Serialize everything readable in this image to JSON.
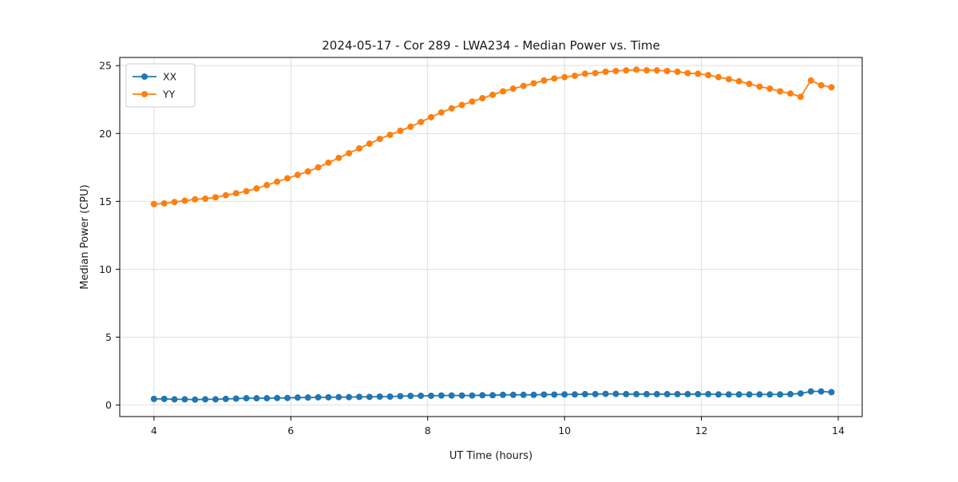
{
  "chart_data": {
    "type": "line",
    "title": "2024-05-17 - Cor 289 - LWA234 - Median Power vs. Time",
    "xlabel": "UT Time (hours)",
    "ylabel": "Median Power (CPU)",
    "xlim": [
      3.5,
      14.35
    ],
    "ylim": [
      -0.85,
      25.6
    ],
    "xticks": [
      4,
      6,
      8,
      10,
      12,
      14
    ],
    "yticks": [
      0,
      5,
      10,
      15,
      20,
      25
    ],
    "grid": true,
    "legend_position": "upper left",
    "x": [
      4.0,
      4.15,
      4.3,
      4.45,
      4.6,
      4.75,
      4.9,
      5.05,
      5.2,
      5.35,
      5.5,
      5.65,
      5.8,
      5.95,
      6.1,
      6.25,
      6.4,
      6.55,
      6.7,
      6.85,
      7.0,
      7.15,
      7.3,
      7.45,
      7.6,
      7.75,
      7.9,
      8.05,
      8.2,
      8.35,
      8.5,
      8.65,
      8.8,
      8.95,
      9.1,
      9.25,
      9.4,
      9.55,
      9.7,
      9.85,
      10.0,
      10.15,
      10.3,
      10.45,
      10.6,
      10.75,
      10.9,
      11.05,
      11.2,
      11.35,
      11.5,
      11.65,
      11.8,
      11.95,
      12.1,
      12.25,
      12.4,
      12.55,
      12.7,
      12.85,
      13.0,
      13.15,
      13.3,
      13.45,
      13.6,
      13.75,
      13.9
    ],
    "series": [
      {
        "name": "XX",
        "color": "#1f77b4",
        "values": [
          0.45,
          0.45,
          0.42,
          0.42,
          0.4,
          0.42,
          0.42,
          0.45,
          0.47,
          0.5,
          0.5,
          0.5,
          0.52,
          0.52,
          0.55,
          0.55,
          0.57,
          0.57,
          0.58,
          0.58,
          0.6,
          0.6,
          0.62,
          0.62,
          0.65,
          0.67,
          0.68,
          0.68,
          0.7,
          0.7,
          0.7,
          0.7,
          0.72,
          0.72,
          0.75,
          0.75,
          0.75,
          0.75,
          0.77,
          0.77,
          0.78,
          0.78,
          0.8,
          0.8,
          0.82,
          0.82,
          0.8,
          0.8,
          0.8,
          0.8,
          0.8,
          0.8,
          0.8,
          0.8,
          0.8,
          0.78,
          0.78,
          0.78,
          0.78,
          0.78,
          0.78,
          0.78,
          0.8,
          0.85,
          1.0,
          1.0,
          0.95
        ]
      },
      {
        "name": "YY",
        "color": "#ff7f0e",
        "values": [
          14.8,
          14.85,
          14.95,
          15.05,
          15.15,
          15.2,
          15.3,
          15.45,
          15.6,
          15.75,
          15.95,
          16.2,
          16.45,
          16.7,
          16.95,
          17.2,
          17.5,
          17.85,
          18.2,
          18.55,
          18.9,
          19.25,
          19.6,
          19.9,
          20.2,
          20.5,
          20.85,
          21.2,
          21.55,
          21.85,
          22.1,
          22.35,
          22.6,
          22.85,
          23.1,
          23.3,
          23.5,
          23.7,
          23.9,
          24.05,
          24.15,
          24.25,
          24.4,
          24.45,
          24.55,
          24.6,
          24.65,
          24.7,
          24.65,
          24.65,
          24.6,
          24.55,
          24.45,
          24.4,
          24.3,
          24.15,
          24.0,
          23.85,
          23.65,
          23.45,
          23.3,
          23.1,
          22.95,
          22.7,
          23.9,
          23.55,
          23.4
        ]
      }
    ],
    "style": {
      "grid_color": "#dcdcdc",
      "frame_color": "#000000",
      "background": "#ffffff",
      "marker_radius": 4,
      "line_width": 1.8
    }
  }
}
